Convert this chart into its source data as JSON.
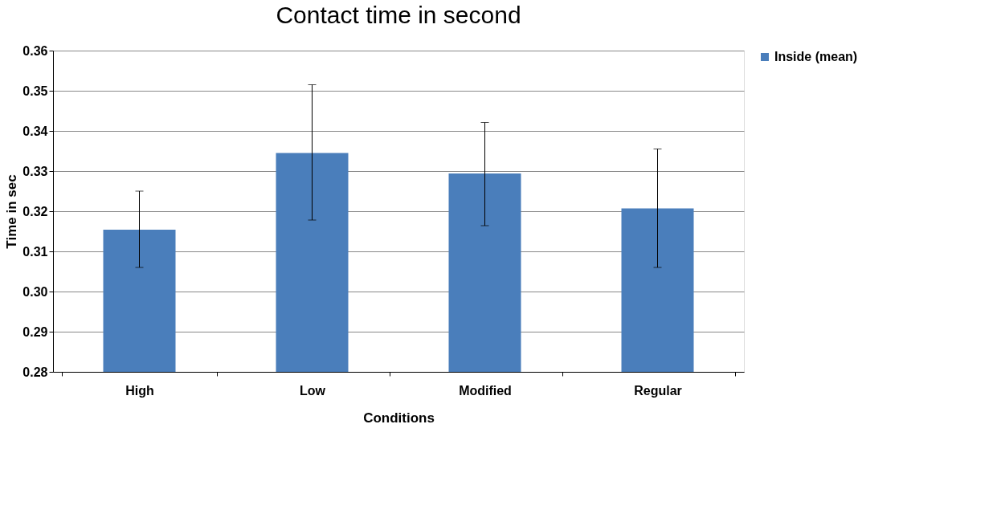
{
  "chart_data": {
    "type": "bar",
    "title": "Contact time in second",
    "xlabel": "Conditions",
    "ylabel": "Time in sec",
    "categories": [
      "High",
      "Low",
      "Modified",
      "Regular"
    ],
    "series": [
      {
        "name": "Inside (mean)",
        "color": "#4a7ebb",
        "values": [
          0.3154,
          0.3345,
          0.3294,
          0.3207
        ],
        "errors": [
          [
            0.306,
            0.325
          ],
          [
            0.3178,
            0.3515
          ],
          [
            0.3164,
            0.3421
          ],
          [
            0.306,
            0.3355
          ]
        ]
      }
    ],
    "ylim": [
      0.28,
      0.36
    ],
    "yticks": [
      {
        "value": 0.28,
        "label": "0.28"
      },
      {
        "value": 0.29,
        "label": "0.29"
      },
      {
        "value": 0.3,
        "label": "0.30"
      },
      {
        "value": 0.31,
        "label": "0.31"
      },
      {
        "value": 0.32,
        "label": "0.32"
      },
      {
        "value": 0.33,
        "label": "0.33"
      },
      {
        "value": 0.34,
        "label": "0.34"
      },
      {
        "value": 0.35,
        "label": "0.35"
      },
      {
        "value": 0.36,
        "label": "0.36"
      }
    ],
    "grid": "y",
    "legend": "right"
  }
}
